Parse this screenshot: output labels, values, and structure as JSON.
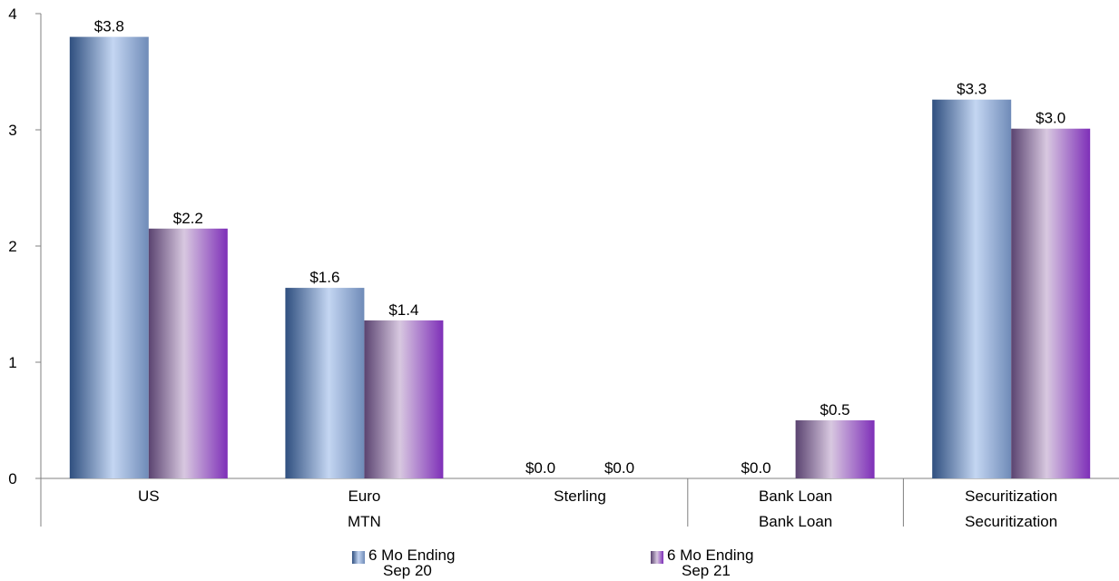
{
  "chart_data": {
    "type": "bar",
    "categories": [
      "US",
      "Euro",
      "Sterling",
      "Bank Loan",
      "Securitization"
    ],
    "groups": [
      {
        "label": "MTN",
        "categories": [
          "US",
          "Euro",
          "Sterling"
        ]
      },
      {
        "label": "Bank Loan",
        "categories": [
          "Bank Loan"
        ]
      },
      {
        "label": "Securitization",
        "categories": [
          "Securitization"
        ]
      }
    ],
    "series": [
      {
        "name": "6 Mo Ending Sep 20",
        "name_line1": "6 Mo Ending",
        "name_line2": "Sep 20",
        "values": [
          3.8,
          1.64,
          0.0,
          0.0,
          3.26
        ],
        "labels": [
          "$3.8",
          "$1.6",
          "$0.0",
          "$0.0",
          "$3.3"
        ],
        "color_dark": "#2f4f7f",
        "color_light": "#c4d6f2"
      },
      {
        "name": "6 Mo Ending Sep 21",
        "name_line1": "6 Mo Ending",
        "name_line2": "Sep 21",
        "values": [
          2.15,
          1.36,
          0.0,
          0.5,
          3.01
        ],
        "labels": [
          "$2.2",
          "$1.4",
          "$0.0",
          "$0.5",
          "$3.0"
        ],
        "color_dark": "#5a4370",
        "color_light": "#d8c8e0",
        "color_edge": "#7e2fb8"
      }
    ],
    "y_ticks": [
      "0",
      "1",
      "2",
      "3",
      "4"
    ],
    "ylim": [
      0,
      4
    ],
    "grid": false,
    "legend_position": "bottom"
  }
}
